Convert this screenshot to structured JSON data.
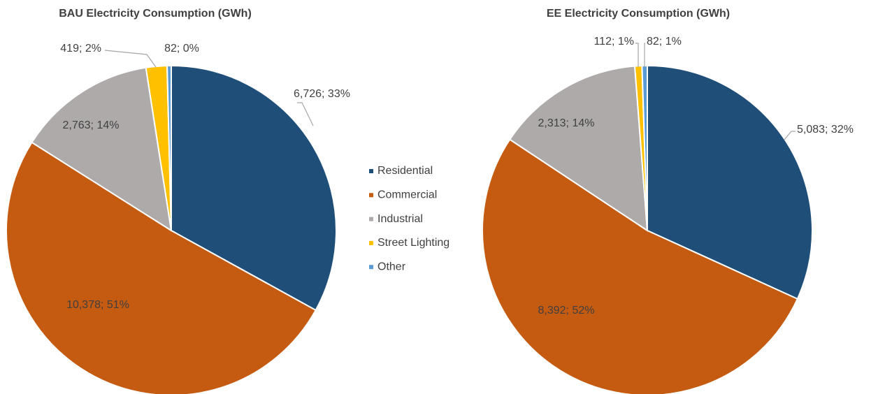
{
  "chart_data": [
    {
      "type": "pie",
      "title": "BAU Electricity Consumption (GWh)",
      "categories": [
        "Residential",
        "Commercial",
        "Industrial",
        "Street Lighting",
        "Other"
      ],
      "values": [
        6726,
        10378,
        2763,
        419,
        82
      ],
      "value_labels": [
        "6,726; 33%",
        "10,378; 51%",
        "2,763; 14%",
        "419; 2%",
        "82; 0%"
      ],
      "colors": [
        "#1f4e79",
        "#c55a11",
        "#aeaaaa",
        "#ffc000",
        "#5b9bd5"
      ]
    },
    {
      "type": "pie",
      "title": "EE Electricity Consumption (GWh)",
      "categories": [
        "Residential",
        "Commercial",
        "Industrial",
        "Street Lighting",
        "Other"
      ],
      "values": [
        5083,
        8392,
        2313,
        112,
        82
      ],
      "value_labels": [
        "5,083; 32%",
        "8,392; 52%",
        "2,313; 14%",
        "112; 1%",
        "82; 1%"
      ],
      "colors": [
        "#1f4e79",
        "#c55a11",
        "#aeaaaa",
        "#ffc000",
        "#5b9bd5"
      ]
    }
  ]
}
